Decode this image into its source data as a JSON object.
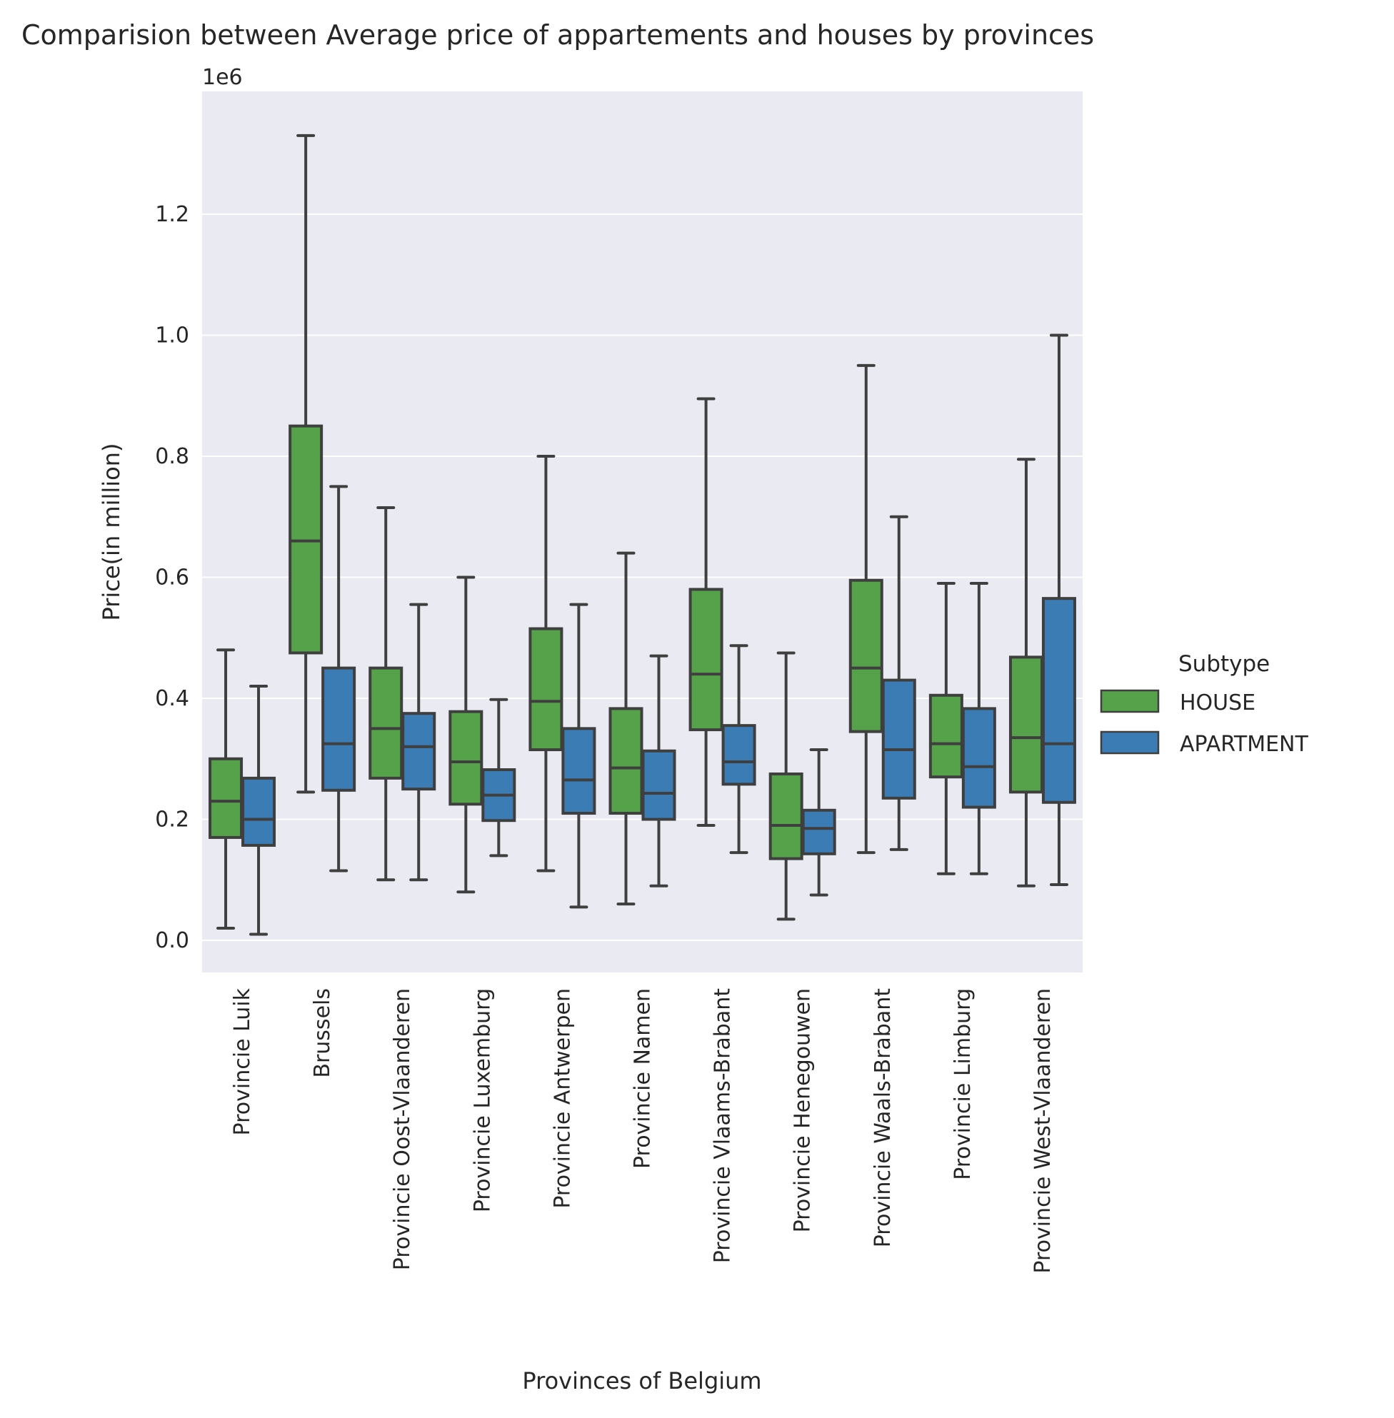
{
  "chart_data": {
    "type": "box",
    "title": "Comparision between Average price of appartements and houses by provinces",
    "xlabel": "Provinces of Belgium",
    "ylabel": "Price(in million)",
    "y_offset_label": "1e6",
    "ylim": [
      -0.053,
      1.385
    ],
    "y_ticks": [
      "0.0",
      "0.2",
      "0.4",
      "0.6",
      "0.8",
      "1.0",
      "1.2"
    ],
    "grid": true,
    "legend": {
      "title": "Subtype",
      "position": "right"
    },
    "categories": [
      "Provincie Luik",
      "Brussels",
      "Provincie Oost-Vlaanderen",
      "Provincie Luxemburg",
      "Provincie Antwerpen",
      "Provincie Namen",
      "Provincie Vlaams-Brabant",
      "Provincie Henegouwen",
      "Provincie Waals-Brabant",
      "Provincie Limburg",
      "Provincie West-Vlaanderen"
    ],
    "series": [
      {
        "name": "HOUSE",
        "color": "#55a24a",
        "boxes": [
          {
            "whislo": 0.02,
            "q1": 0.17,
            "med": 0.23,
            "q3": 0.3,
            "whishi": 0.48
          },
          {
            "whislo": 0.245,
            "q1": 0.475,
            "med": 0.66,
            "q3": 0.85,
            "whishi": 1.33
          },
          {
            "whislo": 0.1,
            "q1": 0.268,
            "med": 0.35,
            "q3": 0.45,
            "whishi": 0.715
          },
          {
            "whislo": 0.08,
            "q1": 0.225,
            "med": 0.295,
            "q3": 0.378,
            "whishi": 0.6
          },
          {
            "whislo": 0.115,
            "q1": 0.315,
            "med": 0.395,
            "q3": 0.515,
            "whishi": 0.8
          },
          {
            "whislo": 0.06,
            "q1": 0.21,
            "med": 0.285,
            "q3": 0.383,
            "whishi": 0.64
          },
          {
            "whislo": 0.19,
            "q1": 0.348,
            "med": 0.44,
            "q3": 0.58,
            "whishi": 0.895
          },
          {
            "whislo": 0.035,
            "q1": 0.135,
            "med": 0.19,
            "q3": 0.275,
            "whishi": 0.475
          },
          {
            "whislo": 0.145,
            "q1": 0.345,
            "med": 0.45,
            "q3": 0.595,
            "whishi": 0.95
          },
          {
            "whislo": 0.11,
            "q1": 0.27,
            "med": 0.325,
            "q3": 0.405,
            "whishi": 0.59
          },
          {
            "whislo": 0.09,
            "q1": 0.245,
            "med": 0.335,
            "q3": 0.468,
            "whishi": 0.795
          }
        ]
      },
      {
        "name": "APARTMENT",
        "color": "#3b7cb5",
        "boxes": [
          {
            "whislo": 0.01,
            "q1": 0.157,
            "med": 0.2,
            "q3": 0.268,
            "whishi": 0.42
          },
          {
            "whislo": 0.115,
            "q1": 0.248,
            "med": 0.325,
            "q3": 0.45,
            "whishi": 0.75
          },
          {
            "whislo": 0.1,
            "q1": 0.25,
            "med": 0.32,
            "q3": 0.375,
            "whishi": 0.555
          },
          {
            "whislo": 0.14,
            "q1": 0.198,
            "med": 0.24,
            "q3": 0.282,
            "whishi": 0.398
          },
          {
            "whislo": 0.055,
            "q1": 0.21,
            "med": 0.265,
            "q3": 0.35,
            "whishi": 0.555
          },
          {
            "whislo": 0.09,
            "q1": 0.2,
            "med": 0.243,
            "q3": 0.313,
            "whishi": 0.47
          },
          {
            "whislo": 0.145,
            "q1": 0.258,
            "med": 0.295,
            "q3": 0.355,
            "whishi": 0.487
          },
          {
            "whislo": 0.075,
            "q1": 0.143,
            "med": 0.185,
            "q3": 0.215,
            "whishi": 0.315
          },
          {
            "whislo": 0.15,
            "q1": 0.235,
            "med": 0.315,
            "q3": 0.43,
            "whishi": 0.7
          },
          {
            "whislo": 0.11,
            "q1": 0.22,
            "med": 0.287,
            "q3": 0.383,
            "whishi": 0.59
          },
          {
            "whislo": 0.092,
            "q1": 0.228,
            "med": 0.325,
            "q3": 0.565,
            "whishi": 1.0
          }
        ]
      }
    ],
    "colors": {
      "plot_background": "#eaeaf2",
      "grid": "#ffffff",
      "box_edge": "#3f3f3f"
    }
  }
}
